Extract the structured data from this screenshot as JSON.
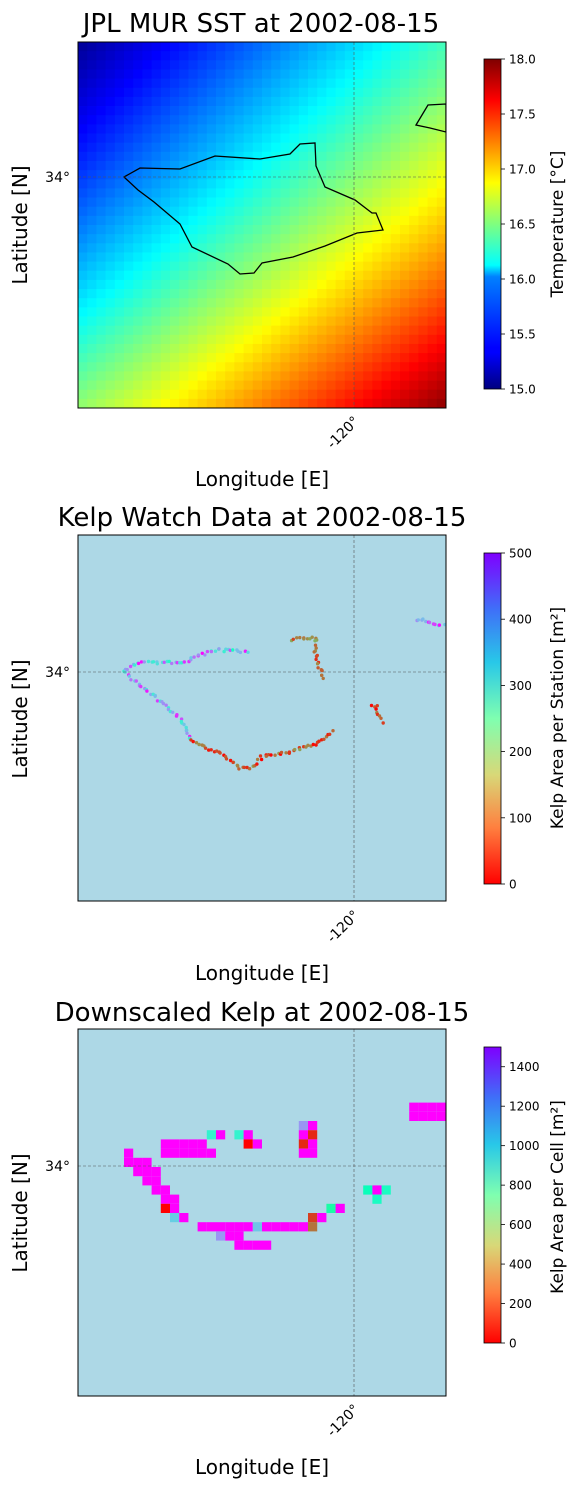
{
  "panels": [
    {
      "title": "JPL MUR SST at 2002-08-15",
      "xlabel": "Longitude [E]",
      "ylabel": "Latitude [N]",
      "x_tick": "-120°",
      "y_tick": "34°",
      "colorbar": {
        "label": "Temperature [°C]",
        "ticks": [
          "15.0",
          "15.5",
          "16.0",
          "16.5",
          "17.0",
          "17.5",
          "18.0"
        ],
        "range": [
          15.0,
          18.0
        ],
        "colormap": "jet"
      }
    },
    {
      "title": "Kelp Watch Data at 2002-08-15",
      "xlabel": "Longitude [E]",
      "ylabel": "Latitude [N]",
      "x_tick": "-120°",
      "y_tick": "34°",
      "colorbar": {
        "label": "Kelp Area per Station [m²]",
        "ticks": [
          "0",
          "100",
          "200",
          "300",
          "400",
          "500"
        ],
        "range": [
          0,
          500
        ],
        "colormap": "rainbow_r"
      }
    },
    {
      "title": "Downscaled Kelp at 2002-08-15",
      "xlabel": "Longitude [E]",
      "ylabel": "Latitude [N]",
      "x_tick": "-120°",
      "y_tick": "34°",
      "colorbar": {
        "label": "Kelp Area per Cell [m²]",
        "ticks": [
          "0",
          "200",
          "400",
          "600",
          "800",
          "1000",
          "1200",
          "1400"
        ],
        "range": [
          0,
          1500
        ],
        "colormap": "rainbow_r"
      }
    }
  ],
  "colors": {
    "ocean": "#add8e6",
    "land": "#d3d3d3",
    "coastline": "#000000",
    "gridline": "#555555"
  },
  "chart_data": [
    {
      "type": "heatmap",
      "title": "JPL MUR SST at 2002-08-15",
      "xlabel": "Longitude [E]",
      "ylabel": "Latitude [N]",
      "value_range": [
        15.0,
        18.0
      ],
      "description": "SST field increasing from ~15.0 °C in the northwest to ~18.0 °C in the southeast"
    },
    {
      "type": "scatter",
      "title": "Kelp Watch Data at 2002-08-15",
      "xlabel": "Longitude [E]",
      "ylabel": "Latitude [N]",
      "value_range": [
        0,
        500
      ]
    },
    {
      "type": "heatmap",
      "title": "Downscaled Kelp at 2002-08-15",
      "xlabel": "Longitude [E]",
      "ylabel": "Latitude [N]",
      "value_range": [
        0,
        1500
      ]
    }
  ]
}
